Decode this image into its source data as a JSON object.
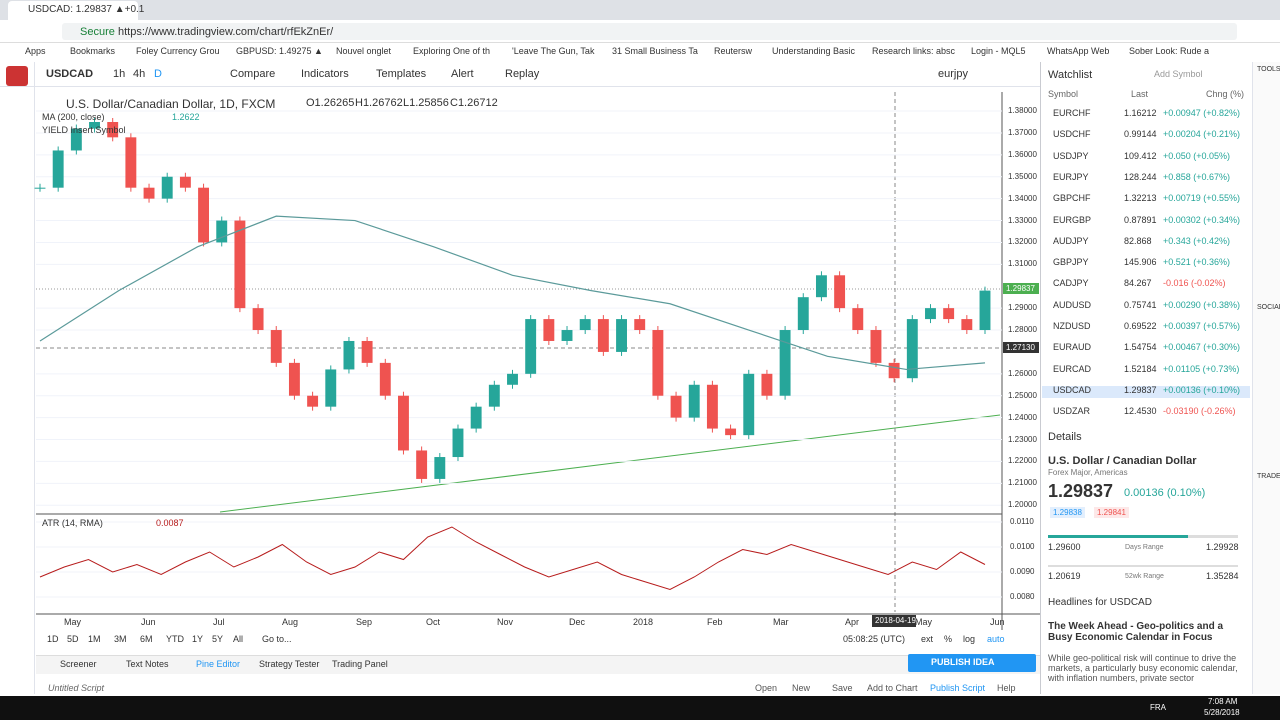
{
  "browser": {
    "tab": "USDCAD: 1.29837 ▲+0.1",
    "secure": "Secure",
    "url": "https://www.tradingview.com/chart/rfEkZnEr/",
    "bookmarks": [
      "Apps",
      "Bookmarks",
      "Foley Currency Grou",
      "GBPUSD: 1.49275 ▲",
      "Nouvel onglet",
      "Exploring One of th",
      "'Leave The Gun, Tak",
      "31 Small Business Ta",
      "Reutersw",
      "Understanding Basic",
      "Research links: absc",
      "Login - MQL5",
      "WhatsApp Web",
      "Sober Look: Rude a"
    ]
  },
  "toolbar": {
    "symbol": "USDCAD",
    "intervals": [
      "1h",
      "4h",
      "D"
    ],
    "buttons": [
      "Compare",
      "Indicators",
      "Templates",
      "Alert",
      "Replay"
    ],
    "layout": "eurjpy"
  },
  "chart": {
    "title": "U.S. Dollar/Canadian Dollar, 1D, FXCM",
    "ohlc": [
      "O1.26265",
      "H1.26762",
      "L1.25856",
      "C1.26712"
    ],
    "ma_label": "MA (200, close)",
    "ma_value": "1.2622",
    "yield_label": "YIELD Insert Symbol",
    "last_price": "1.29837",
    "cursor_price": "1.27130",
    "cursor_date": "2018-04-19",
    "ylim": [
      1.1969,
      1.3887
    ],
    "price_ticks": [
      {
        "value": 1.38,
        "label": "1.38000"
      },
      {
        "value": 1.37,
        "label": "1.37000"
      },
      {
        "value": 1.36,
        "label": "1.36000"
      },
      {
        "value": 1.35,
        "label": "1.35000"
      },
      {
        "value": 1.34,
        "label": "1.34000"
      },
      {
        "value": 1.33,
        "label": "1.33000"
      },
      {
        "value": 1.32,
        "label": "1.32000"
      },
      {
        "value": 1.31,
        "label": "1.31000"
      },
      {
        "value": 1.29,
        "label": "1.29000"
      },
      {
        "value": 1.28,
        "label": "1.28000"
      },
      {
        "value": 1.26,
        "label": "1.26000"
      },
      {
        "value": 1.25,
        "label": "1.25000"
      },
      {
        "value": 1.24,
        "label": "1.24000"
      },
      {
        "value": 1.23,
        "label": "1.23000"
      },
      {
        "value": 1.22,
        "label": "1.22000"
      },
      {
        "value": 1.21,
        "label": "1.21000"
      },
      {
        "value": 1.2,
        "label": "1.20000"
      }
    ],
    "closes": [
      1.345,
      1.362,
      1.372,
      1.375,
      1.368,
      1.345,
      1.34,
      1.35,
      1.345,
      1.32,
      1.33,
      1.29,
      1.28,
      1.265,
      1.25,
      1.245,
      1.262,
      1.275,
      1.265,
      1.25,
      1.225,
      1.212,
      1.222,
      1.235,
      1.245,
      1.255,
      1.26,
      1.285,
      1.275,
      1.28,
      1.285,
      1.27,
      1.285,
      1.28,
      1.25,
      1.24,
      1.255,
      1.235,
      1.232,
      1.26,
      1.25,
      1.28,
      1.295,
      1.305,
      1.29,
      1.28,
      1.265,
      1.258,
      1.285,
      1.29,
      1.285,
      1.28,
      1.298
    ],
    "ma": [
      1.275,
      1.298,
      1.318,
      1.332,
      1.33,
      1.318,
      1.305,
      1.298,
      1.292,
      1.28,
      1.268,
      1.262,
      1.265
    ],
    "atr": {
      "label": "ATR (14, RMA)",
      "value": "0.0087",
      "ylim": [
        0.0074,
        0.0112
      ],
      "ticks": [
        {
          "value": 0.011,
          "label": "0.0110"
        },
        {
          "value": 0.01,
          "label": "0.0100"
        },
        {
          "value": 0.009,
          "label": "0.0090"
        },
        {
          "value": 0.008,
          "label": "0.0080"
        }
      ],
      "values": [
        0.0088,
        0.0092,
        0.0095,
        0.009,
        0.0093,
        0.0089,
        0.0094,
        0.0098,
        0.0092,
        0.0096,
        0.0101,
        0.0094,
        0.0089,
        0.0092,
        0.0098,
        0.0095,
        0.0104,
        0.0108,
        0.0102,
        0.0097,
        0.0092,
        0.0088,
        0.0091,
        0.0094,
        0.0089,
        0.0086,
        0.0083,
        0.0088,
        0.0094,
        0.0099,
        0.0097,
        0.0101,
        0.0098,
        0.0095,
        0.0092,
        0.0089,
        0.0094,
        0.0091,
        0.0098,
        0.0093
      ]
    },
    "months": [
      "May",
      "Jun",
      "Jul",
      "Aug",
      "Sep",
      "Oct",
      "Nov",
      "Dec",
      "2018",
      "Feb",
      "Mar",
      "Apr",
      "May",
      "Jun"
    ],
    "ranges": [
      "1D",
      "5D",
      "1M",
      "3M",
      "6M",
      "YTD",
      "1Y",
      "5Y",
      "All"
    ],
    "goto": "Go to...",
    "clock": "05:08:25 (UTC)",
    "scale_options": [
      "ext",
      "%",
      "log",
      "auto"
    ]
  },
  "watchlist": {
    "title": "Watchlist",
    "add": "Add Symbol",
    "columns": [
      "Symbol",
      "Last",
      "Chng (%)"
    ],
    "rows": [
      [
        "EURCHF",
        "1.16212",
        "+0.00947 (+0.82%)"
      ],
      [
        "USDCHF",
        "0.99144",
        "+0.00204 (+0.21%)"
      ],
      [
        "USDJPY",
        "109.412",
        "+0.050 (+0.05%)"
      ],
      [
        "EURJPY",
        "128.244",
        "+0.858 (+0.67%)"
      ],
      [
        "GBPCHF",
        "1.32213",
        "+0.00719 (+0.55%)"
      ],
      [
        "EURGBP",
        "0.87891",
        "+0.00302 (+0.34%)"
      ],
      [
        "AUDJPY",
        "82.868",
        "+0.343 (+0.42%)"
      ],
      [
        "GBPJPY",
        "145.906",
        "+0.521 (+0.36%)"
      ],
      [
        "CADJPY",
        "84.267",
        "-0.016 (-0.02%)"
      ],
      [
        "AUDUSD",
        "0.75741",
        "+0.00290 (+0.38%)"
      ],
      [
        "NZDUSD",
        "0.69522",
        "+0.00397 (+0.57%)"
      ],
      [
        "EURAUD",
        "1.54754",
        "+0.00467 (+0.30%)"
      ],
      [
        "EURCAD",
        "1.52184",
        "+0.01105 (+0.73%)"
      ],
      [
        "USDCAD",
        "1.29837",
        "+0.00136 (+0.10%)"
      ],
      [
        "USDZAR",
        "12.4530",
        "-0.03190 (-0.26%)"
      ]
    ]
  },
  "details": {
    "title": "Details",
    "name": "U.S. Dollar / Canadian Dollar",
    "market": "Forex Major, Americas",
    "price": "1.29837",
    "change": "0.00136 (0.10%)",
    "bid": "1.29838",
    "ask": "1.29841",
    "day_low": "1.29600",
    "day_label": "Days Range",
    "day_high": "1.29928",
    "wk_low": "1.20619",
    "wk_label": "52wk Range",
    "wk_high": "1.35284"
  },
  "headlines": {
    "title": "Headlines for USDCAD",
    "headline": "The Week Ahead - Geo-politics and a Busy Economic Calendar in Focus",
    "body": "While geo-political risk will continue to drive the markets, a particularly busy economic calendar, with inflation numbers, private sector"
  },
  "sidebar": [
    "TOOLS",
    "SOCIAL",
    "TRADE"
  ],
  "bottom": {
    "tabs": [
      "Screener",
      "Text Notes",
      "Pine Editor",
      "Strategy Tester",
      "Trading Panel"
    ],
    "publish": "PUBLISH IDEA",
    "script": "Untitled Script",
    "actions": [
      "Open",
      "New",
      "Save",
      "Add to Chart",
      "Publish Script",
      "Help"
    ]
  },
  "taskbar": {
    "lang": "FRA",
    "time": "7:08 AM",
    "date": "5/28/2018"
  }
}
